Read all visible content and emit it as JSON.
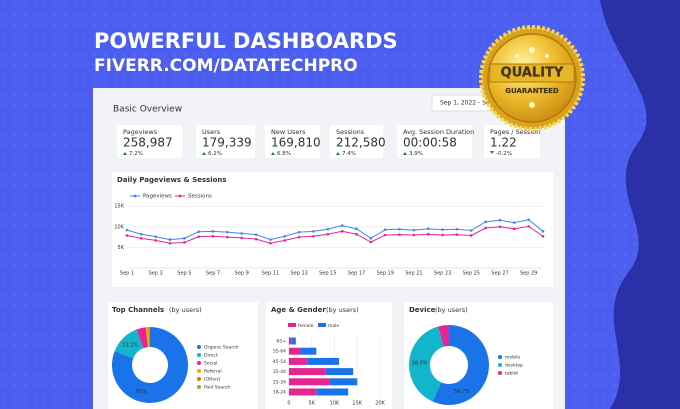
{
  "header": {
    "title": "POWERFUL DASHBOARDS",
    "subtitle": "FIVERR.COM/DATATECHPRO"
  },
  "badge": {
    "line1": "QUALITY",
    "line2": "GUARANTEED"
  },
  "dashboard": {
    "title": "Basic Overview",
    "date_range": "Sep 1, 2022 - Sep",
    "kpis": [
      {
        "label": "Pageviews",
        "value": "258,987",
        "change": "7.2%"
      },
      {
        "label": "Users",
        "value": "179,339",
        "change": "6.2%"
      },
      {
        "label": "New Users",
        "value": "169,810",
        "change": "6.8%"
      },
      {
        "label": "Sessions",
        "value": "212,580",
        "change": "7.4%"
      },
      {
        "label": "Avg. Session Duration",
        "value": "00:00:58",
        "change": "3.9%"
      },
      {
        "label": "Pages / Session",
        "value": "1.22",
        "change": "-0.2%"
      }
    ]
  },
  "chart_data": [
    {
      "type": "line",
      "title": "Daily Pageviews & Sessions",
      "categories": [
        "Sep 1",
        null,
        "Sep 3",
        null,
        "Sep 5",
        null,
        "Sep 7",
        null,
        "Sep 9",
        null,
        "Sep 11",
        null,
        "Sep 13",
        null,
        "Sep 15",
        null,
        "Sep 17",
        null,
        "Sep 19",
        null,
        "Sep 21",
        null,
        "Sep 23",
        null,
        "Sep 25",
        null,
        "Sep 27",
        null,
        "Sep 29",
        null
      ],
      "series": [
        {
          "name": "Pageviews",
          "color": "#4285f4",
          "values": [
            9200,
            8200,
            7600,
            6900,
            7200,
            8800,
            8900,
            8700,
            8400,
            8100,
            6900,
            7700,
            8700,
            8900,
            9400,
            10300,
            9500,
            7200,
            9300,
            9400,
            9200,
            9500,
            9300,
            9400,
            9100,
            11200,
            11600,
            11000,
            11700,
            8900
          ]
        },
        {
          "name": "Sessions",
          "color": "#e52592",
          "values": [
            7900,
            7200,
            6700,
            6000,
            6200,
            7600,
            7700,
            7500,
            7300,
            7000,
            6000,
            6700,
            7500,
            7700,
            8200,
            8900,
            8200,
            6300,
            8000,
            8100,
            8000,
            8200,
            8000,
            8100,
            7900,
            9700,
            10000,
            9500,
            10100,
            7700
          ]
        }
      ],
      "ylim": [
        0,
        16500
      ],
      "yticks": [
        {
          "value": 5000,
          "label": "5K"
        },
        {
          "value": 10000,
          "label": "10K"
        },
        {
          "value": 15000,
          "label": "15K"
        }
      ],
      "grid": true
    },
    {
      "type": "donut",
      "title": "Top Channels",
      "subtitle": "(by users)",
      "categories": [
        "Organic Search",
        "Direct",
        "Social",
        "Referral",
        "(Other)",
        "Paid Search"
      ],
      "values": [
        81,
        13.2,
        4,
        1,
        0.5,
        0.3
      ],
      "value_labels": [
        "81%",
        "13.2%",
        null,
        null,
        null,
        null
      ],
      "colors": [
        "#1a73e8",
        "#12b5cb",
        "#e52592",
        "#f9ab00",
        "#e8710a",
        "#7cb342"
      ]
    },
    {
      "type": "hbar_stacked",
      "title": "Age & Gender",
      "subtitle": "(by users)",
      "categories": [
        "65+",
        "55-64",
        "45-54",
        "35-44",
        "25-34",
        "18-24"
      ],
      "series": [
        {
          "name": "female",
          "color": "#e52592",
          "values": [
            500,
            2500,
            4000,
            8100,
            9000,
            6000
          ]
        },
        {
          "name": "male",
          "color": "#1a73e8",
          "values": [
            1000,
            3500,
            7000,
            6000,
            6000,
            7000
          ]
        }
      ],
      "xlim": [
        0,
        20000
      ],
      "xticks": [
        0,
        {
          "value": 5000,
          "label": "5K"
        },
        {
          "value": 10000,
          "label": "10K"
        },
        {
          "value": 15000,
          "label": "15K"
        },
        {
          "value": 20000,
          "label": "20K"
        }
      ]
    },
    {
      "type": "donut",
      "title": "Device",
      "subtitle": "(by users)",
      "categories": [
        "mobile",
        "desktop",
        "tablet"
      ],
      "values": [
        56.7,
        38.9,
        4.4
      ],
      "value_labels": [
        "56.7%",
        "38.9%",
        null
      ],
      "colors": [
        "#1a73e8",
        "#12b5cb",
        "#e52592"
      ]
    }
  ]
}
